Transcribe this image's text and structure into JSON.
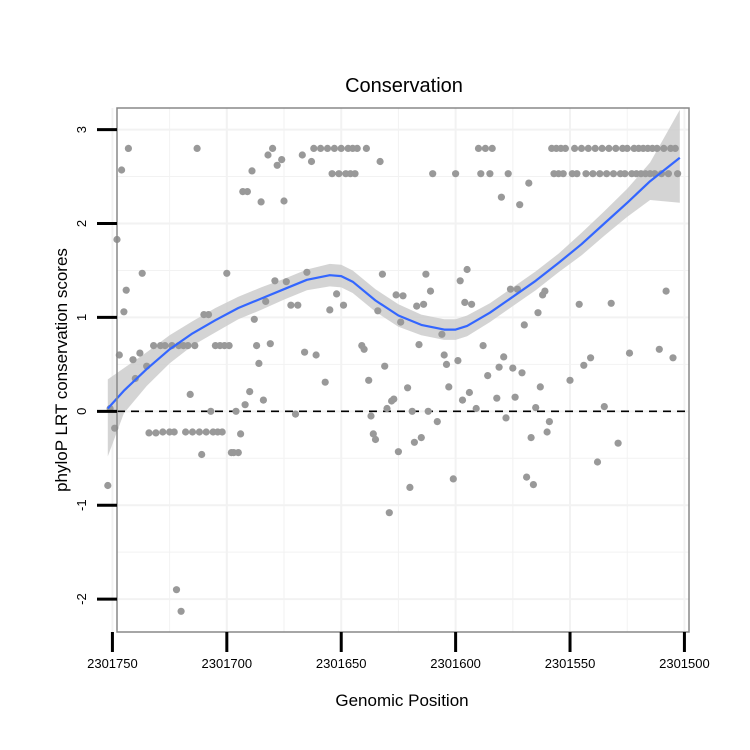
{
  "chart_data": {
    "type": "scatter",
    "title": "Conservation",
    "xlabel": "Genomic Position",
    "ylabel": "phyloP LRT conservation scores",
    "x_reversed": true,
    "xlim": [
      2301748,
      2301498
    ],
    "ylim": [
      -2.35,
      3.23
    ],
    "x_ticks": [
      2301750,
      2301700,
      2301650,
      2301600,
      2301550,
      2301500
    ],
    "x_tick_labels": [
      "2301750",
      "2301700",
      "2301650",
      "2301600",
      "2301550",
      "2301500"
    ],
    "y_ticks": [
      -2,
      -1,
      0,
      1,
      2,
      3
    ],
    "y_tick_labels": [
      "-2",
      "-1",
      "0",
      "1",
      "2",
      "3"
    ],
    "grid": true,
    "reference_line": {
      "y": 0,
      "style": "dashed"
    },
    "colors": {
      "points": "#999999",
      "smooth_line": "#3366FF",
      "confidence_band": "#CCCCCC",
      "panel_border": "#888888",
      "grid": "#F2F2F2",
      "ref_line": "#000000"
    },
    "points": [
      [
        2301752,
        -0.79
      ],
      [
        2301751,
        0.03
      ],
      [
        2301749,
        -0.18
      ],
      [
        2301748,
        1.83
      ],
      [
        2301747,
        0.6
      ],
      [
        2301746,
        2.57
      ],
      [
        2301745,
        1.06
      ],
      [
        2301744,
        1.29
      ],
      [
        2301743,
        2.8
      ],
      [
        2301741,
        0.55
      ],
      [
        2301740,
        0.35
      ],
      [
        2301738,
        0.62
      ],
      [
        2301737,
        1.47
      ],
      [
        2301735,
        0.48
      ],
      [
        2301734,
        -0.23
      ],
      [
        2301732,
        0.7
      ],
      [
        2301731,
        -0.23
      ],
      [
        2301729,
        0.7
      ],
      [
        2301728,
        -0.22
      ],
      [
        2301727,
        0.7
      ],
      [
        2301725,
        -0.22
      ],
      [
        2301724,
        0.7
      ],
      [
        2301723,
        -0.22
      ],
      [
        2301722,
        -1.9
      ],
      [
        2301721,
        0.7
      ],
      [
        2301720,
        -2.13
      ],
      [
        2301719,
        0.7
      ],
      [
        2301718,
        -0.22
      ],
      [
        2301717,
        0.7
      ],
      [
        2301716,
        0.18
      ],
      [
        2301715,
        -0.22
      ],
      [
        2301714,
        0.7
      ],
      [
        2301713,
        2.8
      ],
      [
        2301712,
        -0.22
      ],
      [
        2301711,
        -0.46
      ],
      [
        2301710,
        1.03
      ],
      [
        2301709,
        -0.22
      ],
      [
        2301708,
        1.03
      ],
      [
        2301707,
        0.0
      ],
      [
        2301706,
        -0.22
      ],
      [
        2301705,
        0.7
      ],
      [
        2301704,
        -0.22
      ],
      [
        2301703,
        0.7
      ],
      [
        2301702,
        -0.22
      ],
      [
        2301701,
        0.7
      ],
      [
        2301700,
        1.47
      ],
      [
        2301699,
        0.7
      ],
      [
        2301698,
        -0.44
      ],
      [
        2301697,
        -0.44
      ],
      [
        2301696,
        0.0
      ],
      [
        2301695,
        -0.44
      ],
      [
        2301694,
        -0.24
      ],
      [
        2301693,
        2.34
      ],
      [
        2301692,
        0.07
      ],
      [
        2301691,
        2.34
      ],
      [
        2301690,
        0.21
      ],
      [
        2301689,
        2.56
      ],
      [
        2301688,
        0.98
      ],
      [
        2301687,
        0.7
      ],
      [
        2301686,
        0.51
      ],
      [
        2301685,
        2.23
      ],
      [
        2301684,
        0.12
      ],
      [
        2301683,
        1.17
      ],
      [
        2301682,
        2.73
      ],
      [
        2301681,
        0.72
      ],
      [
        2301680,
        2.8
      ],
      [
        2301679,
        1.39
      ],
      [
        2301678,
        2.62
      ],
      [
        2301676,
        2.68
      ],
      [
        2301675,
        2.24
      ],
      [
        2301674,
        1.38
      ],
      [
        2301672,
        1.13
      ],
      [
        2301670,
        -0.03
      ],
      [
        2301669,
        1.13
      ],
      [
        2301667,
        2.73
      ],
      [
        2301666,
        0.63
      ],
      [
        2301665,
        1.48
      ],
      [
        2301663,
        2.66
      ],
      [
        2301662,
        2.8
      ],
      [
        2301661,
        0.6
      ],
      [
        2301659,
        2.8
      ],
      [
        2301657,
        0.31
      ],
      [
        2301656,
        2.8
      ],
      [
        2301655,
        1.08
      ],
      [
        2301654,
        2.53
      ],
      [
        2301653,
        2.8
      ],
      [
        2301652,
        1.25
      ],
      [
        2301651,
        2.53
      ],
      [
        2301650,
        2.8
      ],
      [
        2301649,
        1.13
      ],
      [
        2301648,
        2.53
      ],
      [
        2301647,
        2.8
      ],
      [
        2301646,
        2.53
      ],
      [
        2301645,
        2.8
      ],
      [
        2301644,
        2.53
      ],
      [
        2301643,
        2.8
      ],
      [
        2301641,
        0.7
      ],
      [
        2301640,
        0.66
      ],
      [
        2301639,
        2.8
      ],
      [
        2301638,
        0.33
      ],
      [
        2301637,
        -0.05
      ],
      [
        2301636,
        -0.24
      ],
      [
        2301635,
        -0.3
      ],
      [
        2301634,
        1.07
      ],
      [
        2301633,
        2.66
      ],
      [
        2301632,
        1.46
      ],
      [
        2301631,
        0.48
      ],
      [
        2301630,
        0.03
      ],
      [
        2301629,
        -1.08
      ],
      [
        2301628,
        0.11
      ],
      [
        2301627,
        0.13
      ],
      [
        2301626,
        1.24
      ],
      [
        2301625,
        -0.43
      ],
      [
        2301624,
        0.95
      ],
      [
        2301623,
        1.23
      ],
      [
        2301621,
        0.25
      ],
      [
        2301620,
        -0.81
      ],
      [
        2301619,
        0.0
      ],
      [
        2301618,
        -0.33
      ],
      [
        2301617,
        1.12
      ],
      [
        2301616,
        0.71
      ],
      [
        2301615,
        -0.28
      ],
      [
        2301614,
        1.14
      ],
      [
        2301613,
        1.46
      ],
      [
        2301612,
        0.0
      ],
      [
        2301611,
        1.28
      ],
      [
        2301610,
        2.53
      ],
      [
        2301608,
        -0.11
      ],
      [
        2301606,
        0.82
      ],
      [
        2301605,
        0.6
      ],
      [
        2301604,
        0.5
      ],
      [
        2301603,
        0.26
      ],
      [
        2301601,
        -0.72
      ],
      [
        2301600,
        2.53
      ],
      [
        2301599,
        0.54
      ],
      [
        2301598,
        1.39
      ],
      [
        2301597,
        0.12
      ],
      [
        2301596,
        1.16
      ],
      [
        2301595,
        1.51
      ],
      [
        2301594,
        0.2
      ],
      [
        2301593,
        1.14
      ],
      [
        2301591,
        0.03
      ],
      [
        2301590,
        2.8
      ],
      [
        2301589,
        2.53
      ],
      [
        2301588,
        0.7
      ],
      [
        2301587,
        2.8
      ],
      [
        2301586,
        0.38
      ],
      [
        2301585,
        2.53
      ],
      [
        2301584,
        2.8
      ],
      [
        2301582,
        0.14
      ],
      [
        2301581,
        0.47
      ],
      [
        2301580,
        2.28
      ],
      [
        2301579,
        0.58
      ],
      [
        2301578,
        -0.07
      ],
      [
        2301577,
        2.53
      ],
      [
        2301576,
        1.3
      ],
      [
        2301575,
        0.46
      ],
      [
        2301574,
        0.15
      ],
      [
        2301573,
        1.3
      ],
      [
        2301572,
        2.2
      ],
      [
        2301571,
        0.41
      ],
      [
        2301570,
        0.92
      ],
      [
        2301569,
        -0.7
      ],
      [
        2301568,
        2.43
      ],
      [
        2301567,
        -0.28
      ],
      [
        2301566,
        -0.78
      ],
      [
        2301565,
        0.04
      ],
      [
        2301564,
        1.05
      ],
      [
        2301563,
        0.26
      ],
      [
        2301562,
        1.24
      ],
      [
        2301561,
        1.28
      ],
      [
        2301560,
        -0.22
      ],
      [
        2301559,
        -0.11
      ],
      [
        2301558,
        2.8
      ],
      [
        2301557,
        2.53
      ],
      [
        2301556,
        2.8
      ],
      [
        2301555,
        2.53
      ],
      [
        2301554,
        2.8
      ],
      [
        2301553,
        2.53
      ],
      [
        2301552,
        2.8
      ],
      [
        2301550,
        0.33
      ],
      [
        2301549,
        2.53
      ],
      [
        2301548,
        2.8
      ],
      [
        2301547,
        2.53
      ],
      [
        2301546,
        1.14
      ],
      [
        2301545,
        2.8
      ],
      [
        2301544,
        0.49
      ],
      [
        2301543,
        2.53
      ],
      [
        2301542,
        2.8
      ],
      [
        2301541,
        0.57
      ],
      [
        2301540,
        2.53
      ],
      [
        2301539,
        2.8
      ],
      [
        2301538,
        -0.54
      ],
      [
        2301537,
        2.53
      ],
      [
        2301536,
        2.8
      ],
      [
        2301535,
        0.05
      ],
      [
        2301534,
        2.53
      ],
      [
        2301533,
        2.8
      ],
      [
        2301532,
        1.15
      ],
      [
        2301531,
        2.53
      ],
      [
        2301530,
        2.8
      ],
      [
        2301529,
        -0.34
      ],
      [
        2301528,
        2.53
      ],
      [
        2301527,
        2.8
      ],
      [
        2301526,
        2.53
      ],
      [
        2301525,
        2.8
      ],
      [
        2301524,
        0.62
      ],
      [
        2301523,
        2.53
      ],
      [
        2301522,
        2.8
      ],
      [
        2301521,
        2.53
      ],
      [
        2301520,
        2.8
      ],
      [
        2301519,
        2.53
      ],
      [
        2301518,
        2.8
      ],
      [
        2301517,
        2.53
      ],
      [
        2301516,
        2.8
      ],
      [
        2301515,
        2.53
      ],
      [
        2301514,
        2.8
      ],
      [
        2301513,
        2.53
      ],
      [
        2301512,
        2.8
      ],
      [
        2301511,
        0.66
      ],
      [
        2301510,
        2.53
      ],
      [
        2301509,
        2.8
      ],
      [
        2301508,
        1.28
      ],
      [
        2301507,
        2.53
      ],
      [
        2301506,
        2.8
      ],
      [
        2301505,
        0.57
      ],
      [
        2301504,
        2.8
      ],
      [
        2301503,
        2.53
      ]
    ],
    "smooth_fit": {
      "x": [
        2301752,
        2301745,
        2301735,
        2301725,
        2301715,
        2301705,
        2301695,
        2301685,
        2301675,
        2301665,
        2301655,
        2301650,
        2301645,
        2301635,
        2301625,
        2301615,
        2301605,
        2301600,
        2301595,
        2301585,
        2301575,
        2301565,
        2301555,
        2301545,
        2301535,
        2301525,
        2301515,
        2301502
      ],
      "y": [
        0.03,
        0.22,
        0.45,
        0.66,
        0.83,
        0.97,
        1.1,
        1.2,
        1.3,
        1.4,
        1.45,
        1.44,
        1.38,
        1.18,
        1.02,
        0.92,
        0.87,
        0.87,
        0.91,
        1.05,
        1.22,
        1.39,
        1.58,
        1.78,
        2.0,
        2.22,
        2.45,
        2.7
      ],
      "upper": [
        0.34,
        0.46,
        0.63,
        0.81,
        0.96,
        1.1,
        1.22,
        1.32,
        1.41,
        1.51,
        1.57,
        1.56,
        1.5,
        1.3,
        1.14,
        1.03,
        0.98,
        0.98,
        1.02,
        1.15,
        1.32,
        1.49,
        1.68,
        1.9,
        2.13,
        2.37,
        2.65,
        3.21
      ],
      "lower": [
        -0.48,
        -0.02,
        0.27,
        0.51,
        0.7,
        0.84,
        0.98,
        1.08,
        1.19,
        1.29,
        1.33,
        1.32,
        1.26,
        1.06,
        0.9,
        0.81,
        0.76,
        0.76,
        0.8,
        0.95,
        1.12,
        1.29,
        1.48,
        1.66,
        1.87,
        2.07,
        2.25,
        2.22
      ]
    }
  }
}
